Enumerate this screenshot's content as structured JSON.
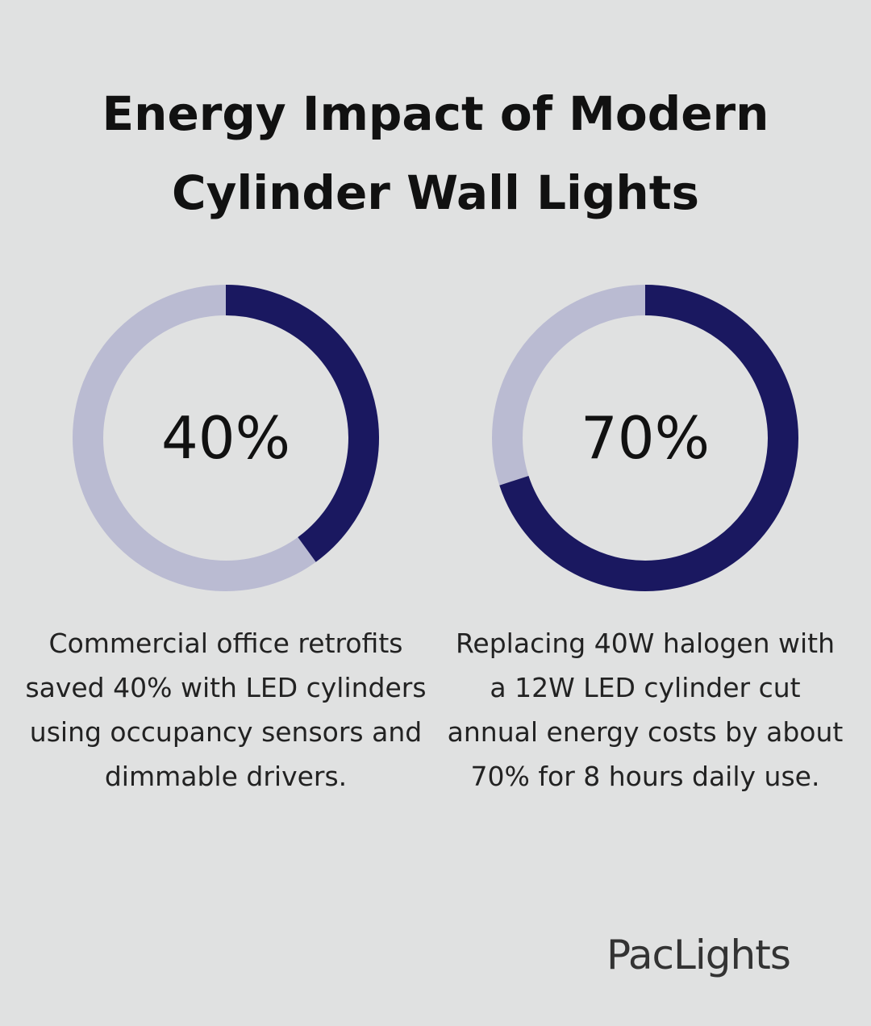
{
  "title": "Energy Impact of Modern Cylinder Wall Lights",
  "chart_data": [
    {
      "type": "donut",
      "values": [
        40
      ],
      "value_labels": [
        "40%"
      ],
      "ylim": [
        0,
        100
      ],
      "color": "#1a1860",
      "track_color": "#babbd2",
      "caption": "Commercial office retrofits saved 40% with LED cylinders using occupancy sensors and dimmable drivers."
    },
    {
      "type": "donut",
      "values": [
        70
      ],
      "value_labels": [
        "70%"
      ],
      "ylim": [
        0,
        100
      ],
      "color": "#1a1860",
      "track_color": "#babbd2",
      "caption": "Replacing 40W halogen with a 12W LED cylinder cut annual energy costs by about 70% for 8 hours daily use."
    }
  ],
  "brand": "PacLights"
}
